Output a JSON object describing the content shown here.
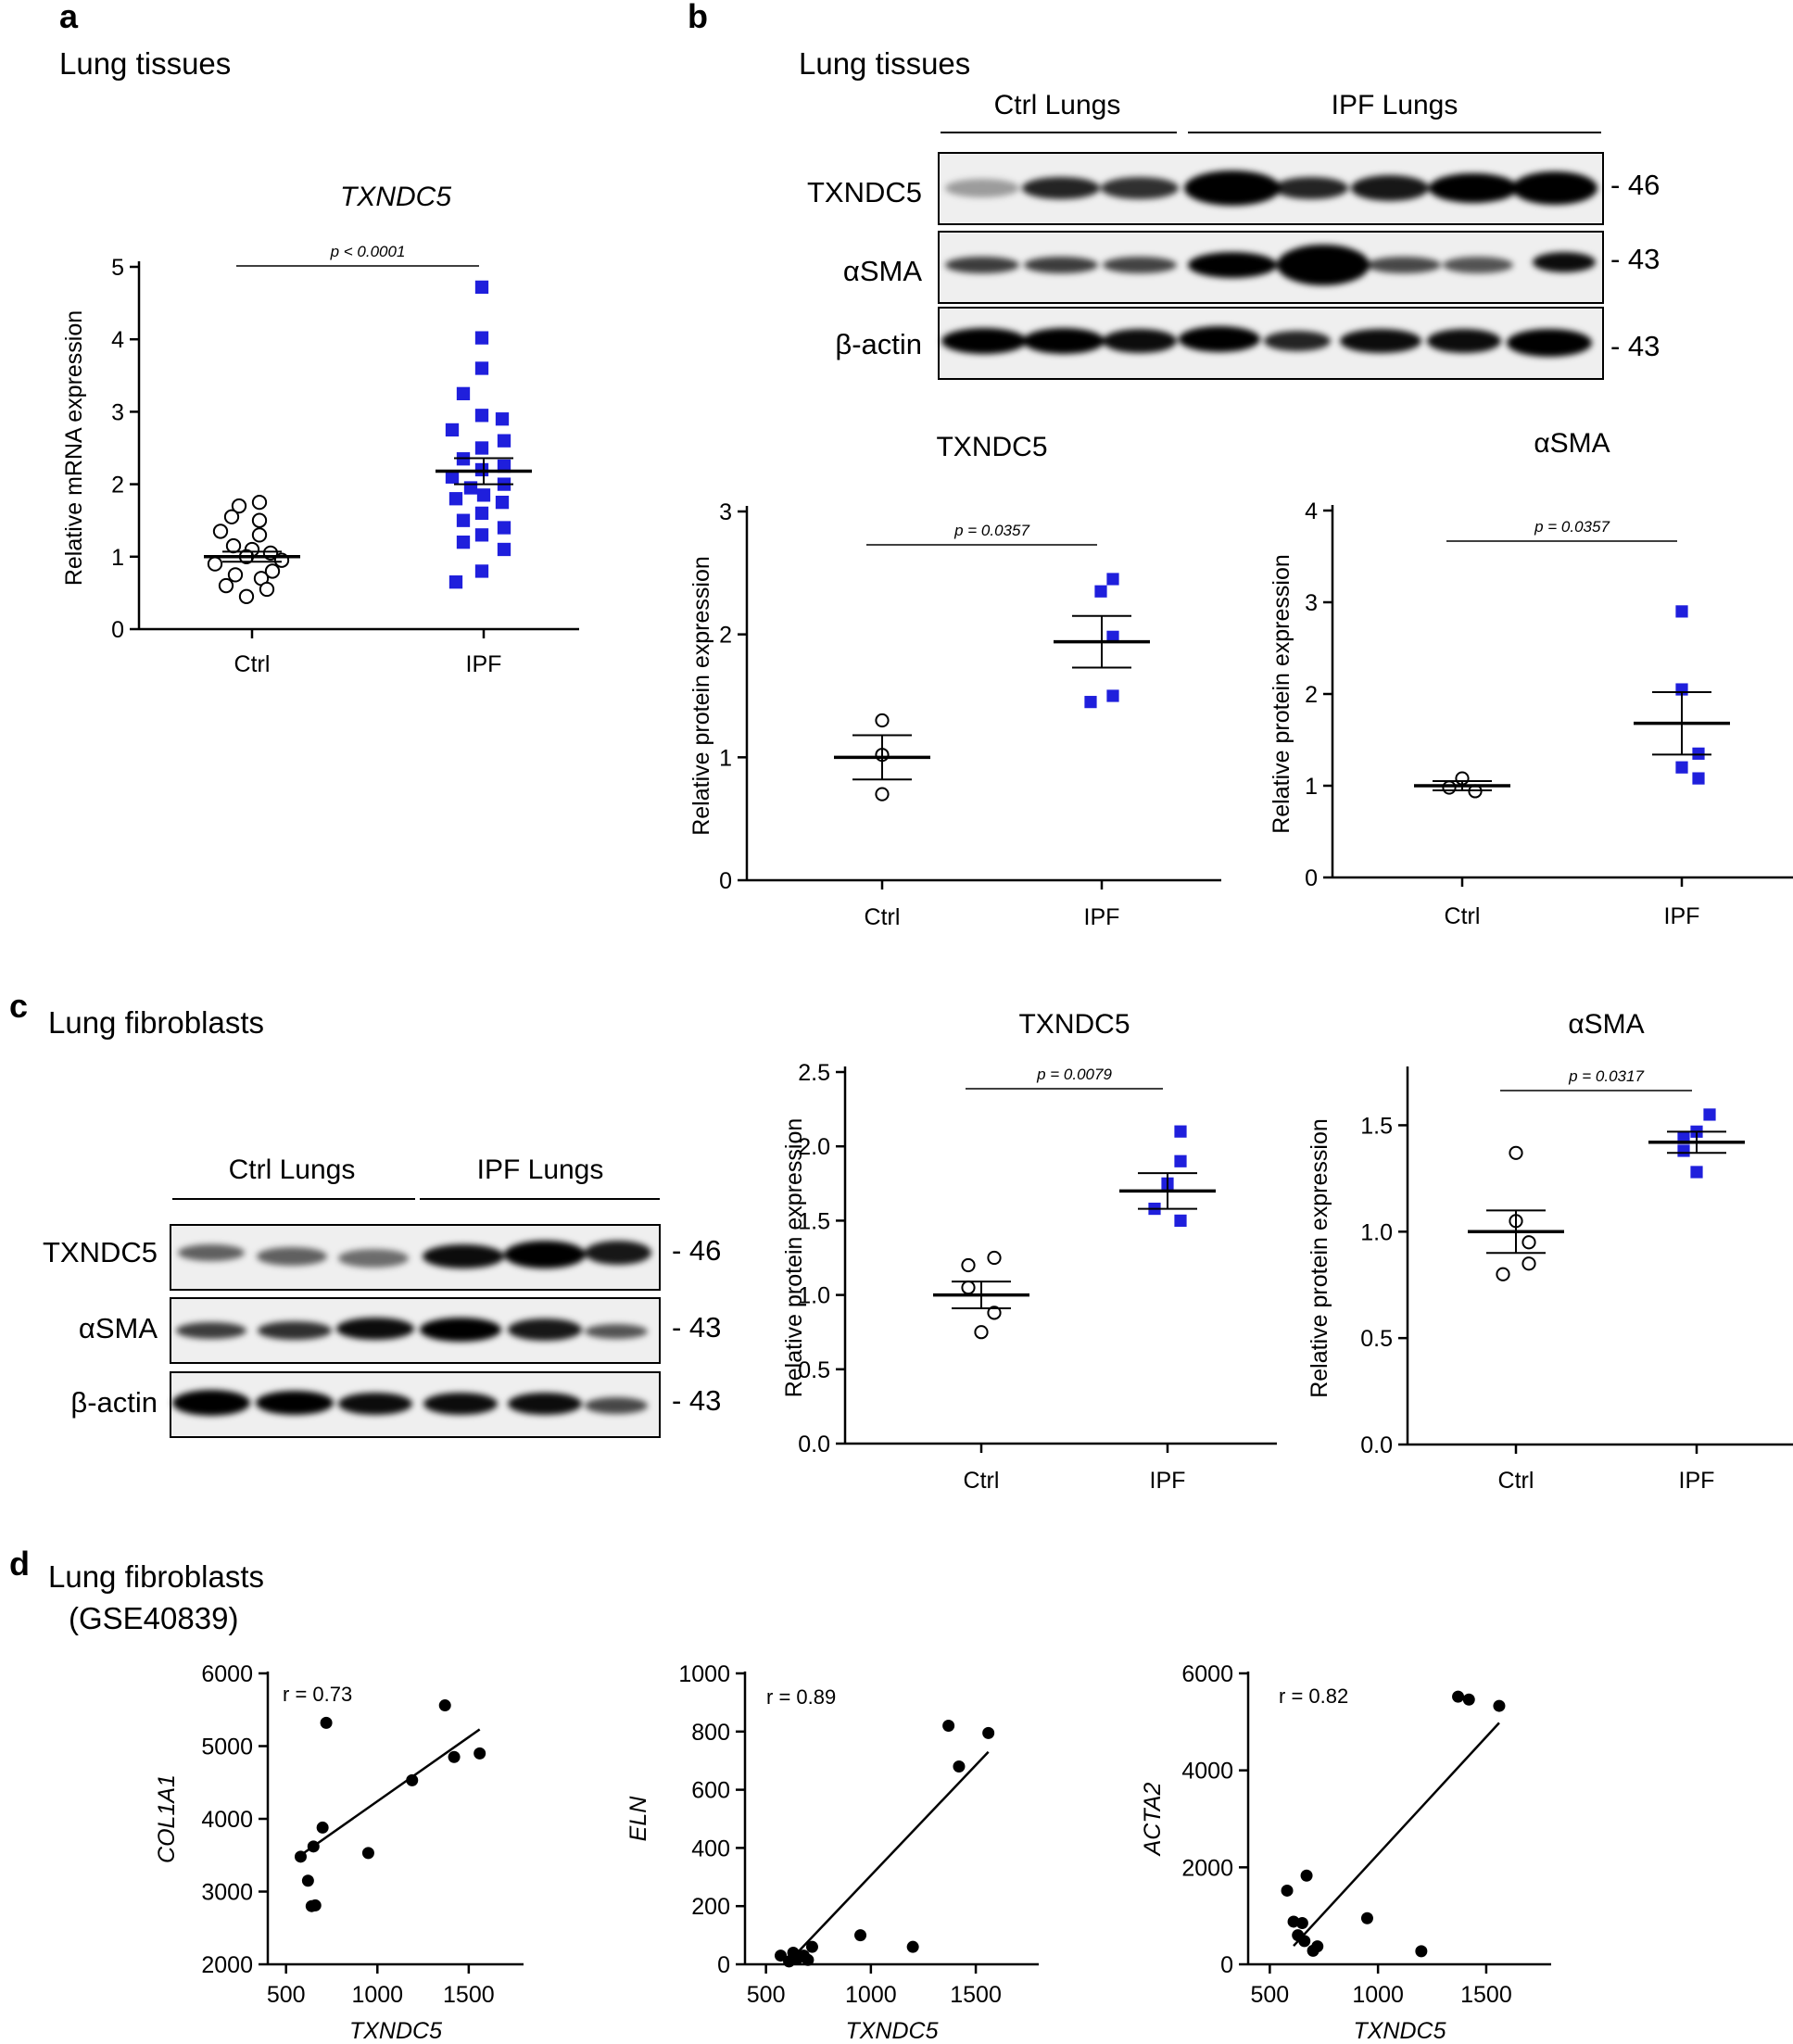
{
  "colors": {
    "ink": "#000000",
    "ipf_blue": "#1f1fdc",
    "ctrl_fill": "#ffffff",
    "blot_bg": "#efefef"
  },
  "panels": {
    "a": {
      "label": "a",
      "header": "Lung tissues"
    },
    "b": {
      "label": "b",
      "header": "Lung tissues",
      "blot": {
        "group_ctrl": "Ctrl Lungs",
        "group_ipf": "IPF Lungs",
        "rows": [
          {
            "label": "TXNDC5",
            "kda": "- 46"
          },
          {
            "label": "αSMA",
            "kda": "- 43"
          },
          {
            "label": "β-actin",
            "kda": "- 43"
          }
        ]
      }
    },
    "c": {
      "label": "c",
      "header": "Lung fibroblasts",
      "blot": {
        "group_ctrl": "Ctrl Lungs",
        "group_ipf": "IPF Lungs",
        "rows": [
          {
            "label": "TXNDC5",
            "kda": "- 46"
          },
          {
            "label": "αSMA",
            "kda": "- 43"
          },
          {
            "label": "β-actin",
            "kda": "- 43"
          }
        ]
      }
    },
    "d": {
      "label": "d",
      "header_line1": "Lung fibroblasts",
      "header_line2": "(GSE40839)"
    }
  },
  "chart_data": [
    {
      "id": "a",
      "type": "scatter",
      "title": "TXNDC5",
      "ylabel": "Relative mRNA expression",
      "categories": [
        "Ctrl",
        "IPF"
      ],
      "ylim": [
        0,
        5
      ],
      "yticks": [
        "0",
        "1",
        "2",
        "3",
        "4",
        "5"
      ],
      "p_label": "p < 0.0001",
      "series": [
        {
          "name": "Ctrl",
          "mean": 1.0,
          "sem": 0.07,
          "points": [
            1.75,
            1.7,
            1.55,
            1.5,
            1.35,
            1.3,
            1.15,
            1.1,
            1.05,
            1.0,
            0.95,
            0.9,
            0.8,
            0.75,
            0.7,
            0.6,
            0.55,
            0.45
          ]
        },
        {
          "name": "IPF",
          "mean": 2.18,
          "sem": 0.18,
          "points": [
            4.72,
            4.02,
            3.6,
            3.25,
            2.95,
            2.9,
            2.75,
            2.6,
            2.5,
            2.35,
            2.25,
            2.2,
            2.1,
            2.0,
            1.95,
            1.85,
            1.8,
            1.75,
            1.6,
            1.5,
            1.4,
            1.3,
            1.2,
            1.1,
            0.8,
            0.65
          ]
        }
      ]
    },
    {
      "id": "b1",
      "type": "scatter",
      "title": "TXNDC5",
      "ylabel": "Relative protein expression",
      "categories": [
        "Ctrl",
        "IPF"
      ],
      "ylim": [
        0,
        3
      ],
      "yticks": [
        "0",
        "1",
        "2",
        "3"
      ],
      "p_label": "p = 0.0357",
      "series": [
        {
          "name": "Ctrl",
          "mean": 1.0,
          "sem": 0.18,
          "points": [
            1.3,
            1.02,
            0.7
          ]
        },
        {
          "name": "IPF",
          "mean": 1.94,
          "sem": 0.21,
          "points": [
            2.45,
            2.35,
            1.98,
            1.5,
            1.45
          ]
        }
      ]
    },
    {
      "id": "b2",
      "type": "scatter",
      "title": "αSMA",
      "ylabel": "Relative protein expression",
      "categories": [
        "Ctrl",
        "IPF"
      ],
      "ylim": [
        0,
        4
      ],
      "yticks": [
        "0",
        "1",
        "2",
        "3",
        "4"
      ],
      "p_label": "p = 0.0357",
      "series": [
        {
          "name": "Ctrl",
          "mean": 1.0,
          "sem": 0.05,
          "points": [
            1.08,
            0.98,
            0.94
          ]
        },
        {
          "name": "IPF",
          "mean": 1.68,
          "sem": 0.34,
          "points": [
            2.9,
            2.05,
            1.35,
            1.2,
            1.08
          ]
        }
      ]
    },
    {
      "id": "c1",
      "type": "scatter",
      "title": "TXNDC5",
      "ylabel": "Relative protein expression",
      "categories": [
        "Ctrl",
        "IPF"
      ],
      "ylim": [
        0,
        2.5
      ],
      "yticks": [
        "0.0",
        "0.5",
        "1.0",
        "1.5",
        "2.0",
        "2.5"
      ],
      "p_label": "p = 0.0079",
      "series": [
        {
          "name": "Ctrl",
          "mean": 1.0,
          "sem": 0.09,
          "points": [
            1.25,
            1.2,
            1.05,
            0.88,
            0.75
          ]
        },
        {
          "name": "IPF",
          "mean": 1.7,
          "sem": 0.12,
          "points": [
            2.1,
            1.9,
            1.75,
            1.58,
            1.5
          ]
        }
      ]
    },
    {
      "id": "c2",
      "type": "scatter",
      "title": "αSMA",
      "ylabel": "Relative protein expression",
      "categories": [
        "Ctrl",
        "IPF"
      ],
      "ylim": [
        0,
        1.75
      ],
      "yticks": [
        "0.0",
        "0.5",
        "1.0",
        "1.5"
      ],
      "p_label": "p = 0.0317",
      "series": [
        {
          "name": "Ctrl",
          "mean": 1.0,
          "sem": 0.1,
          "points": [
            1.37,
            1.05,
            0.95,
            0.85,
            0.8
          ]
        },
        {
          "name": "IPF",
          "mean": 1.42,
          "sem": 0.05,
          "points": [
            1.55,
            1.47,
            1.44,
            1.38,
            1.28
          ]
        }
      ]
    },
    {
      "id": "d1",
      "type": "scatter",
      "xlabel": "TXNDC5",
      "ylabel": "COL1A1",
      "r_label": "r = 0.73",
      "xlim": [
        400,
        1800
      ],
      "ylim": [
        2000,
        6000
      ],
      "xticks": [
        "500",
        "1000",
        "1500"
      ],
      "yticks": [
        "2000",
        "3000",
        "4000",
        "5000",
        "6000"
      ],
      "x": [
        580,
        620,
        640,
        650,
        660,
        700,
        720,
        950,
        1190,
        1370,
        1420,
        1560
      ],
      "y": [
        3480,
        3150,
        2800,
        3620,
        2810,
        3880,
        5320,
        3530,
        4530,
        5560,
        4850,
        4900
      ],
      "fit": [
        [
          580,
          3500
        ],
        [
          1560,
          5230
        ]
      ]
    },
    {
      "id": "d2",
      "type": "scatter",
      "xlabel": "TXNDC5",
      "ylabel": "ELN",
      "r_label": "r = 0.89",
      "xlim": [
        400,
        1800
      ],
      "ylim": [
        0,
        1000
      ],
      "xticks": [
        "500",
        "1000",
        "1500"
      ],
      "yticks": [
        "0",
        "200",
        "400",
        "600",
        "800",
        "1000"
      ],
      "x": [
        570,
        610,
        630,
        650,
        680,
        700,
        720,
        950,
        1200,
        1370,
        1420,
        1560
      ],
      "y": [
        30,
        10,
        40,
        20,
        30,
        15,
        60,
        100,
        60,
        820,
        680,
        795
      ],
      "fit": [
        [
          610,
          10
        ],
        [
          1560,
          730
        ]
      ]
    },
    {
      "id": "d3",
      "type": "scatter",
      "xlabel": "TXNDC5",
      "ylabel": "ACTA2",
      "r_label": "r = 0.82",
      "xlim": [
        400,
        1800
      ],
      "ylim": [
        0,
        6000
      ],
      "xticks": [
        "500",
        "1000",
        "1500"
      ],
      "yticks": [
        "0",
        "2000",
        "4000",
        "6000"
      ],
      "x": [
        580,
        610,
        630,
        650,
        660,
        670,
        700,
        720,
        950,
        1200,
        1370,
        1420,
        1560
      ],
      "y": [
        1520,
        880,
        600,
        850,
        480,
        1830,
        280,
        370,
        950,
        270,
        5520,
        5460,
        5330
      ],
      "fit": [
        [
          610,
          380
        ],
        [
          1560,
          4980
        ]
      ]
    }
  ]
}
